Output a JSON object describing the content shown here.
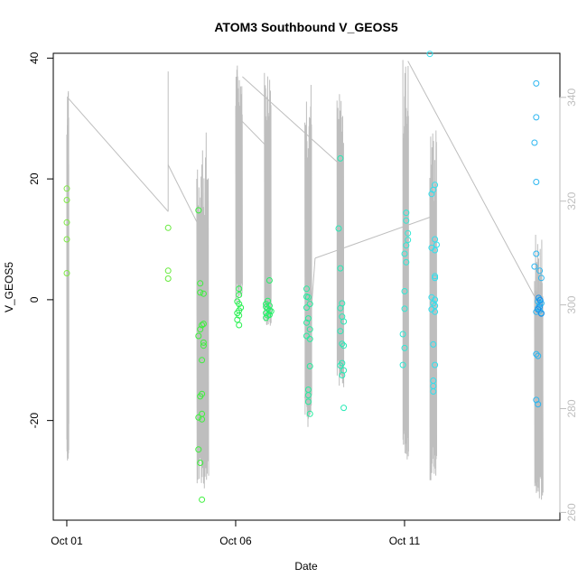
{
  "chart_data": {
    "type": "scatter",
    "title": "ATOM3 Southbound V_GEOS5",
    "xlabel": "Date",
    "ylabel": "V_GEOS5",
    "x_ticks": [
      {
        "label": "Oct 01",
        "day": 1.0
      },
      {
        "label": "Oct 06",
        "day": 6.0
      },
      {
        "label": "Oct 11",
        "day": 11.0
      }
    ],
    "xlim": [
      0.6,
      15.6
    ],
    "ylim": [
      -36.5,
      40.8
    ],
    "y_ticks": [
      -20,
      0,
      20,
      40
    ],
    "y2lim": [
      258.5,
      348.5
    ],
    "y2_ticks": [
      260,
      280,
      300,
      320,
      340
    ],
    "y2_color": "#bebebe",
    "grid": false,
    "legend": "none",
    "series": [
      {
        "color": "#7ee845",
        "points": [
          [
            1.0,
            18.4
          ],
          [
            1.0,
            16.5
          ],
          [
            1.0,
            12.8
          ],
          [
            1.0,
            10.0
          ],
          [
            1.0,
            4.4
          ]
        ]
      },
      {
        "color": "#66ea3c",
        "points": [
          [
            4.0,
            11.9
          ],
          [
            4.0,
            4.8
          ],
          [
            4.0,
            3.5
          ]
        ]
      },
      {
        "color": "#3cf03c",
        "points": [
          [
            4.9,
            14.8
          ],
          [
            4.95,
            2.7
          ],
          [
            4.95,
            1.2
          ],
          [
            5.05,
            1.0
          ],
          [
            5.0,
            -4.2
          ],
          [
            5.05,
            -4.0
          ],
          [
            4.95,
            -4.9
          ],
          [
            4.9,
            -6.0
          ],
          [
            5.05,
            -7.1
          ],
          [
            5.05,
            -7.6
          ],
          [
            5.0,
            -10.0
          ],
          [
            5.0,
            -15.6
          ],
          [
            4.95,
            -16.0
          ],
          [
            5.0,
            -18.9
          ],
          [
            4.9,
            -19.5
          ],
          [
            5.0,
            -19.8
          ],
          [
            4.9,
            -24.8
          ],
          [
            4.95,
            -27.0
          ],
          [
            5.0,
            -33.1
          ]
        ]
      },
      {
        "color": "#28f050",
        "points": [
          [
            6.1,
            1.8
          ],
          [
            6.1,
            0.8
          ],
          [
            6.05,
            -0.3
          ],
          [
            6.1,
            -0.7
          ],
          [
            6.15,
            -1.3
          ],
          [
            6.1,
            -1.8
          ],
          [
            6.05,
            -2.2
          ],
          [
            6.1,
            -2.6
          ],
          [
            6.05,
            -3.3
          ],
          [
            6.1,
            -4.2
          ]
        ]
      },
      {
        "color": "#24f068",
        "points": [
          [
            7.0,
            3.2
          ],
          [
            6.95,
            -0.2
          ],
          [
            6.9,
            -0.7
          ],
          [
            7.0,
            -1.0
          ],
          [
            6.9,
            -1.2
          ],
          [
            6.95,
            -1.5
          ],
          [
            7.0,
            -1.8
          ],
          [
            6.9,
            -2.2
          ],
          [
            6.95,
            -2.6
          ],
          [
            6.9,
            -3.0
          ],
          [
            7.0,
            -2.5
          ],
          [
            7.05,
            -1.9
          ]
        ]
      },
      {
        "color": "#26ec9e",
        "points": [
          [
            8.1,
            1.8
          ],
          [
            8.1,
            0.5
          ],
          [
            8.15,
            0.4
          ],
          [
            8.2,
            -0.7
          ],
          [
            8.1,
            -1.3
          ],
          [
            8.15,
            -3.1
          ],
          [
            8.1,
            -3.8
          ],
          [
            8.2,
            -4.9
          ],
          [
            8.2,
            -6.5
          ],
          [
            8.1,
            -6.0
          ],
          [
            8.2,
            -11.0
          ],
          [
            8.15,
            -14.9
          ],
          [
            8.15,
            -15.8
          ],
          [
            8.15,
            -16.9
          ],
          [
            8.2,
            -18.9
          ]
        ]
      },
      {
        "color": "#28eab6",
        "points": [
          [
            9.1,
            23.4
          ],
          [
            9.05,
            11.8
          ],
          [
            9.1,
            5.2
          ],
          [
            9.15,
            -0.6
          ],
          [
            9.1,
            -1.4
          ],
          [
            9.15,
            -2.8
          ],
          [
            9.2,
            -3.6
          ],
          [
            9.1,
            -5.2
          ],
          [
            9.15,
            -7.3
          ],
          [
            9.2,
            -7.6
          ],
          [
            9.15,
            -10.5
          ],
          [
            9.1,
            -10.9
          ],
          [
            9.2,
            -11.7
          ],
          [
            9.15,
            -12.5
          ],
          [
            9.2,
            -17.9
          ]
        ]
      },
      {
        "color": "#30e8d4",
        "points": [
          [
            11.05,
            14.4
          ],
          [
            11.05,
            13.1
          ],
          [
            11.1,
            11.0
          ],
          [
            11.1,
            9.9
          ],
          [
            11.05,
            9.0
          ],
          [
            11.0,
            7.6
          ],
          [
            11.05,
            6.2
          ],
          [
            11.0,
            1.4
          ],
          [
            11.0,
            -1.5
          ],
          [
            10.95,
            -5.7
          ],
          [
            11.0,
            -8.0
          ],
          [
            10.95,
            -10.8
          ]
        ]
      },
      {
        "color": "#30e0ee",
        "points": [
          [
            11.75,
            40.7
          ],
          [
            11.8,
            17.5
          ],
          [
            11.9,
            19.0
          ],
          [
            11.85,
            18.2
          ],
          [
            11.9,
            10.0
          ],
          [
            11.95,
            9.1
          ],
          [
            11.9,
            8.2
          ],
          [
            11.8,
            8.6
          ],
          [
            11.9,
            3.9
          ],
          [
            11.9,
            3.6
          ],
          [
            11.8,
            0.4
          ],
          [
            11.9,
            0.0
          ],
          [
            11.85,
            -0.6
          ],
          [
            11.9,
            -1.0
          ],
          [
            11.8,
            -1.6
          ],
          [
            11.9,
            -2.0
          ],
          [
            11.85,
            -7.4
          ],
          [
            11.9,
            -10.8
          ],
          [
            11.85,
            -13.4
          ],
          [
            11.85,
            -14.3
          ],
          [
            11.85,
            -15.2
          ]
        ]
      },
      {
        "color": "#2cb6f0",
        "points": [
          [
            14.9,
            35.8
          ],
          [
            14.9,
            30.2
          ],
          [
            14.85,
            26.0
          ],
          [
            14.9,
            19.5
          ],
          [
            14.9,
            7.6
          ],
          [
            14.85,
            5.5
          ],
          [
            15.0,
            4.8
          ],
          [
            15.05,
            3.6
          ],
          [
            15.0,
            0.0
          ],
          [
            14.95,
            -0.3
          ],
          [
            15.05,
            -0.6
          ],
          [
            15.0,
            -0.8
          ],
          [
            14.95,
            -1.4
          ],
          [
            15.0,
            -1.8
          ],
          [
            14.9,
            -2.0
          ],
          [
            15.05,
            -2.2
          ],
          [
            14.9,
            -9.0
          ],
          [
            14.95,
            -9.3
          ],
          [
            14.9,
            -16.6
          ],
          [
            14.95,
            -17.3
          ]
        ]
      },
      {
        "color": "#1e90e8",
        "points": [
          [
            14.97,
            0.3
          ],
          [
            15.02,
            -0.1
          ],
          [
            15.0,
            -1.2
          ],
          [
            14.95,
            -1.6
          ],
          [
            15.05,
            -2.3
          ]
        ]
      }
    ],
    "line_series": {
      "color": "#bebebe",
      "axis": "right",
      "bursts": [
        {
          "x0": 1.0,
          "x1": 1.06,
          "lo": 270,
          "hi": 342
        },
        {
          "x0": 4.85,
          "x1": 5.2,
          "lo": 264,
          "hi": 334
        },
        {
          "x0": 6.0,
          "x1": 6.2,
          "lo": 300,
          "hi": 347
        },
        {
          "x0": 6.85,
          "x1": 7.05,
          "lo": 296,
          "hi": 346
        },
        {
          "x0": 8.05,
          "x1": 8.25,
          "lo": 276,
          "hi": 344
        },
        {
          "x0": 9.0,
          "x1": 9.2,
          "lo": 284,
          "hi": 341
        },
        {
          "x0": 10.95,
          "x1": 11.12,
          "lo": 270,
          "hi": 348
        },
        {
          "x0": 11.75,
          "x1": 11.95,
          "lo": 266,
          "hi": 335
        },
        {
          "x0": 14.85,
          "x1": 15.1,
          "lo": 262,
          "hi": 314
        }
      ],
      "connectors": [
        [
          [
            1.02,
            270
          ],
          [
            1.02,
            340
          ],
          [
            4.0,
            318
          ]
        ],
        [
          [
            4.0,
            318
          ],
          [
            4.0,
            345
          ],
          [
            4.0,
            327
          ]
        ],
        [
          [
            4.0,
            327
          ],
          [
            4.85,
            316
          ]
        ],
        [
          [
            6.1,
            336
          ],
          [
            7.0,
            330
          ]
        ],
        [
          [
            6.2,
            344
          ],
          [
            9.1,
            327
          ]
        ],
        [
          [
            8.05,
            282
          ],
          [
            8.35,
            309
          ]
        ],
        [
          [
            8.35,
            309
          ],
          [
            11.8,
            317
          ]
        ],
        [
          [
            11.1,
            347
          ],
          [
            14.9,
            301
          ]
        ]
      ]
    }
  }
}
